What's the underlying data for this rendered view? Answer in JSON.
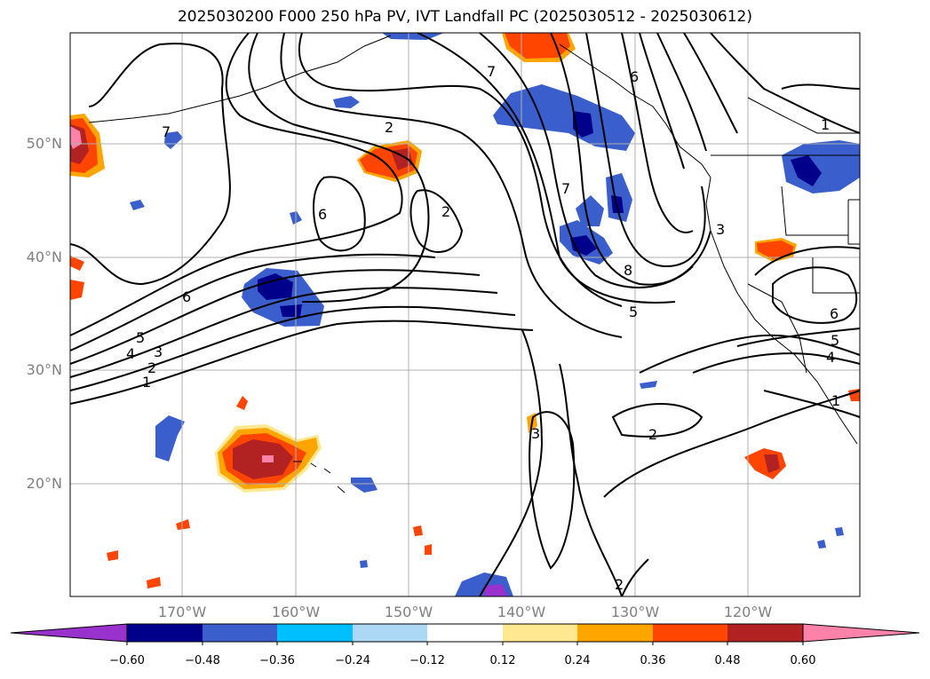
{
  "title": "2025030200 F000 250 hPa PV, IVT Landfall PC (2025030512 - 2025030612)",
  "map": {
    "lat_labels": [
      "50°N",
      "40°N",
      "30°N",
      "20°N"
    ],
    "lon_labels": [
      "170°W",
      "160°W",
      "150°W",
      "140°W",
      "130°W",
      "120°W"
    ],
    "contour_labels": [
      "1",
      "2",
      "3",
      "4",
      "5",
      "6",
      "7",
      "2",
      "6",
      "7",
      "6",
      "2",
      "7",
      "8",
      "5",
      "3",
      "1",
      "6",
      "5",
      "4",
      "1",
      "3",
      "2",
      "2"
    ]
  },
  "colorbar": {
    "ticks": [
      "−0.60",
      "−0.48",
      "−0.36",
      "−0.24",
      "−0.12",
      "0.12",
      "0.24",
      "0.36",
      "0.48",
      "0.60"
    ],
    "colors": [
      "#9932cc",
      "#00008b",
      "#3a5fcd",
      "#00bfff",
      "#add8f5",
      "#ffffff",
      "#ffe88f",
      "#ffa500",
      "#ff4500",
      "#b22222",
      "#ff82ab"
    ]
  },
  "colors": {
    "land_line": "#000000",
    "grid": "#b0b0b0",
    "contour": "#000000"
  }
}
